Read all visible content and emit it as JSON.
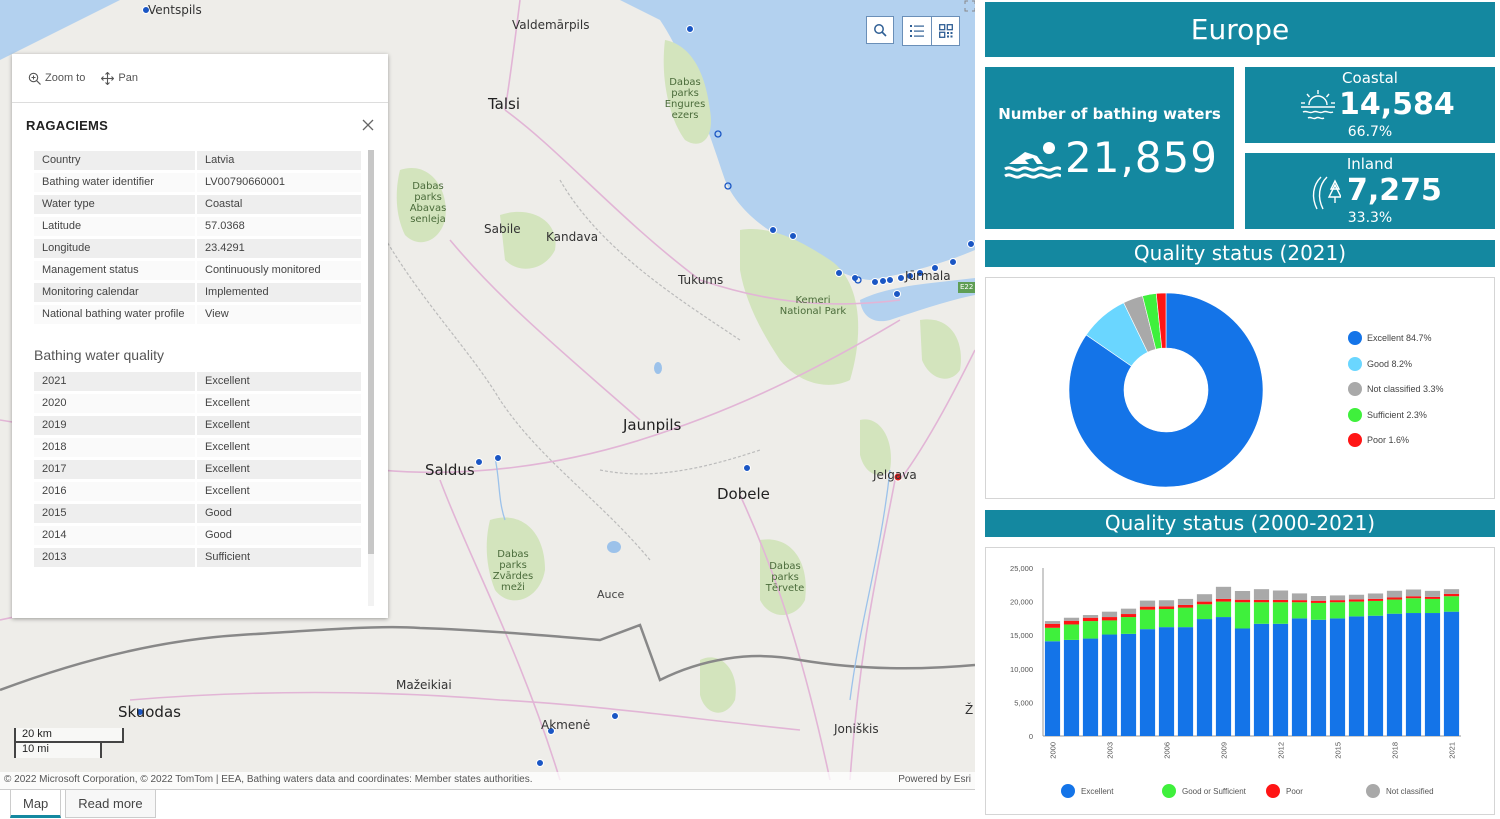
{
  "map": {
    "places": [
      {
        "name": "Ventspils"
      },
      {
        "name": "Valdemārpils"
      },
      {
        "name": "Talsi"
      },
      {
        "name": "Dabas parks Engures ezers"
      },
      {
        "name": "Dabas parks Abavas senleja"
      },
      {
        "name": "Sabile"
      },
      {
        "name": "Kandava"
      },
      {
        "name": "Tukums"
      },
      {
        "name": "Kemeri National Park"
      },
      {
        "name": "Jūrmala"
      },
      {
        "name": "Jaunpils"
      },
      {
        "name": "Saldus"
      },
      {
        "name": "Dobele"
      },
      {
        "name": "Jelgava"
      },
      {
        "name": "Dabas parks Zvārdes meži"
      },
      {
        "name": "Auce"
      },
      {
        "name": "Dabas parks Tērvete"
      },
      {
        "name": "Mažeikiai"
      },
      {
        "name": "Skuodas"
      },
      {
        "name": "Akmenė"
      },
      {
        "name": "Joniškis"
      },
      {
        "name": "Ž"
      },
      {
        "name": "E22"
      }
    ],
    "scale": {
      "km": "20 km",
      "mi": "10 mi"
    },
    "attribution": "© 2022 Microsoft Corporation, © 2022 TomTom | EEA, Bathing waters data and coordinates: Member states authorities.",
    "powered_by": "Powered by Esri",
    "tools": {
      "search_icon": "search-icon",
      "legend_icon": "list-icon",
      "basemap_icon": "qr-grid-icon"
    }
  },
  "popup": {
    "zoom_to": "Zoom to",
    "pan": "Pan",
    "title": "RAGACIEMS",
    "attributes": [
      {
        "k": "Country",
        "v": "Latvia"
      },
      {
        "k": "Bathing water identifier",
        "v": "LV00790660001"
      },
      {
        "k": "Water type",
        "v": "Coastal"
      },
      {
        "k": "Latitude",
        "v": "57.0368"
      },
      {
        "k": "Longitude",
        "v": "23.4291"
      },
      {
        "k": "Management status",
        "v": "Continuously monitored"
      },
      {
        "k": "Monitoring calendar",
        "v": "Implemented"
      },
      {
        "k": "National bathing water profile",
        "v": "View"
      }
    ],
    "quality_title": "Bathing water quality",
    "quality": [
      {
        "k": "2021",
        "v": "Excellent"
      },
      {
        "k": "2020",
        "v": "Excellent"
      },
      {
        "k": "2019",
        "v": "Excellent"
      },
      {
        "k": "2018",
        "v": "Excellent"
      },
      {
        "k": "2017",
        "v": "Excellent"
      },
      {
        "k": "2016",
        "v": "Excellent"
      },
      {
        "k": "2015",
        "v": "Good"
      },
      {
        "k": "2014",
        "v": "Good"
      },
      {
        "k": "2013",
        "v": "Sufficient"
      }
    ]
  },
  "dashboard": {
    "region": "Europe",
    "total": {
      "label": "Number of bathing waters",
      "value": "21,859"
    },
    "coastal": {
      "label": "Coastal",
      "value": "14,584",
      "pct": "66.7%"
    },
    "inland": {
      "label": "Inland",
      "value": "7,275",
      "pct": "33.3%"
    },
    "quality_title": "Quality status (2021)",
    "trend_title": "Quality status (2000-2021)",
    "colors": {
      "excellent": "#1474e8",
      "good": "#6ad6ff",
      "not_classified": "#a9a9a9",
      "sufficient": "#3ff03c",
      "poor": "#ff1515",
      "good_or_sufficient": "#3ff03c",
      "header": "#1488a0"
    }
  },
  "chart_data": [
    {
      "type": "pie",
      "title": "Quality status (2021)",
      "slices": [
        {
          "label": "Excellent",
          "pct_label": "84.7%",
          "value": 84.7,
          "color": "#1474e8"
        },
        {
          "label": "Good",
          "pct_label": "8.2%",
          "value": 8.2,
          "color": "#6ad6ff"
        },
        {
          "label": "Not classified",
          "pct_label": "3.3%",
          "value": 3.3,
          "color": "#a9a9a9"
        },
        {
          "label": "Sufficient",
          "pct_label": "2.3%",
          "value": 2.3,
          "color": "#3ff03c"
        },
        {
          "label": "Poor",
          "pct_label": "1.6%",
          "value": 1.6,
          "color": "#ff1515"
        }
      ]
    },
    {
      "type": "bar",
      "title": "Quality status (2000-2021)",
      "stacked": true,
      "categories": [
        "2000",
        "2001",
        "2002",
        "2003",
        "2004",
        "2005",
        "2006",
        "2007",
        "2008",
        "2009",
        "2010",
        "2011",
        "2012",
        "2013",
        "2014",
        "2015",
        "2016",
        "2017",
        "2018",
        "2019",
        "2020",
        "2021"
      ],
      "xticks": [
        "2000",
        "2003",
        "2006",
        "2009",
        "2012",
        "2015",
        "2018",
        "2021"
      ],
      "ylim": [
        0,
        25000
      ],
      "yticks": [
        "0",
        "5,000",
        "10,000",
        "15,000",
        "20,000",
        "25,000"
      ],
      "series": [
        {
          "name": "Excellent",
          "color": "#1474e8",
          "values": [
            14100,
            14300,
            14500,
            15100,
            15200,
            15900,
            16200,
            16200,
            17400,
            17700,
            16000,
            16700,
            16700,
            17500,
            17300,
            17500,
            17800,
            17900,
            18200,
            18300,
            18300,
            18500
          ]
        },
        {
          "name": "Good or Sufficient",
          "color": "#3ff03c",
          "values": [
            2000,
            2300,
            2600,
            2100,
            2500,
            2900,
            2700,
            2900,
            2200,
            2300,
            3900,
            3200,
            3200,
            2400,
            2500,
            2400,
            2200,
            2200,
            2100,
            2200,
            2100,
            2300
          ]
        },
        {
          "name": "Poor",
          "color": "#ff1515",
          "values": [
            600,
            550,
            500,
            500,
            450,
            450,
            400,
            400,
            400,
            400,
            380,
            350,
            350,
            320,
            330,
            320,
            320,
            310,
            310,
            300,
            300,
            350
          ]
        },
        {
          "name": "Not classified",
          "color": "#a9a9a9",
          "values": [
            400,
            450,
            400,
            800,
            800,
            900,
            900,
            900,
            1100,
            1800,
            1300,
            1600,
            1400,
            1000,
            700,
            700,
            700,
            800,
            1000,
            1000,
            900,
            700
          ]
        }
      ]
    }
  ],
  "tabs": [
    {
      "label": "Map"
    },
    {
      "label": "Read more"
    }
  ]
}
